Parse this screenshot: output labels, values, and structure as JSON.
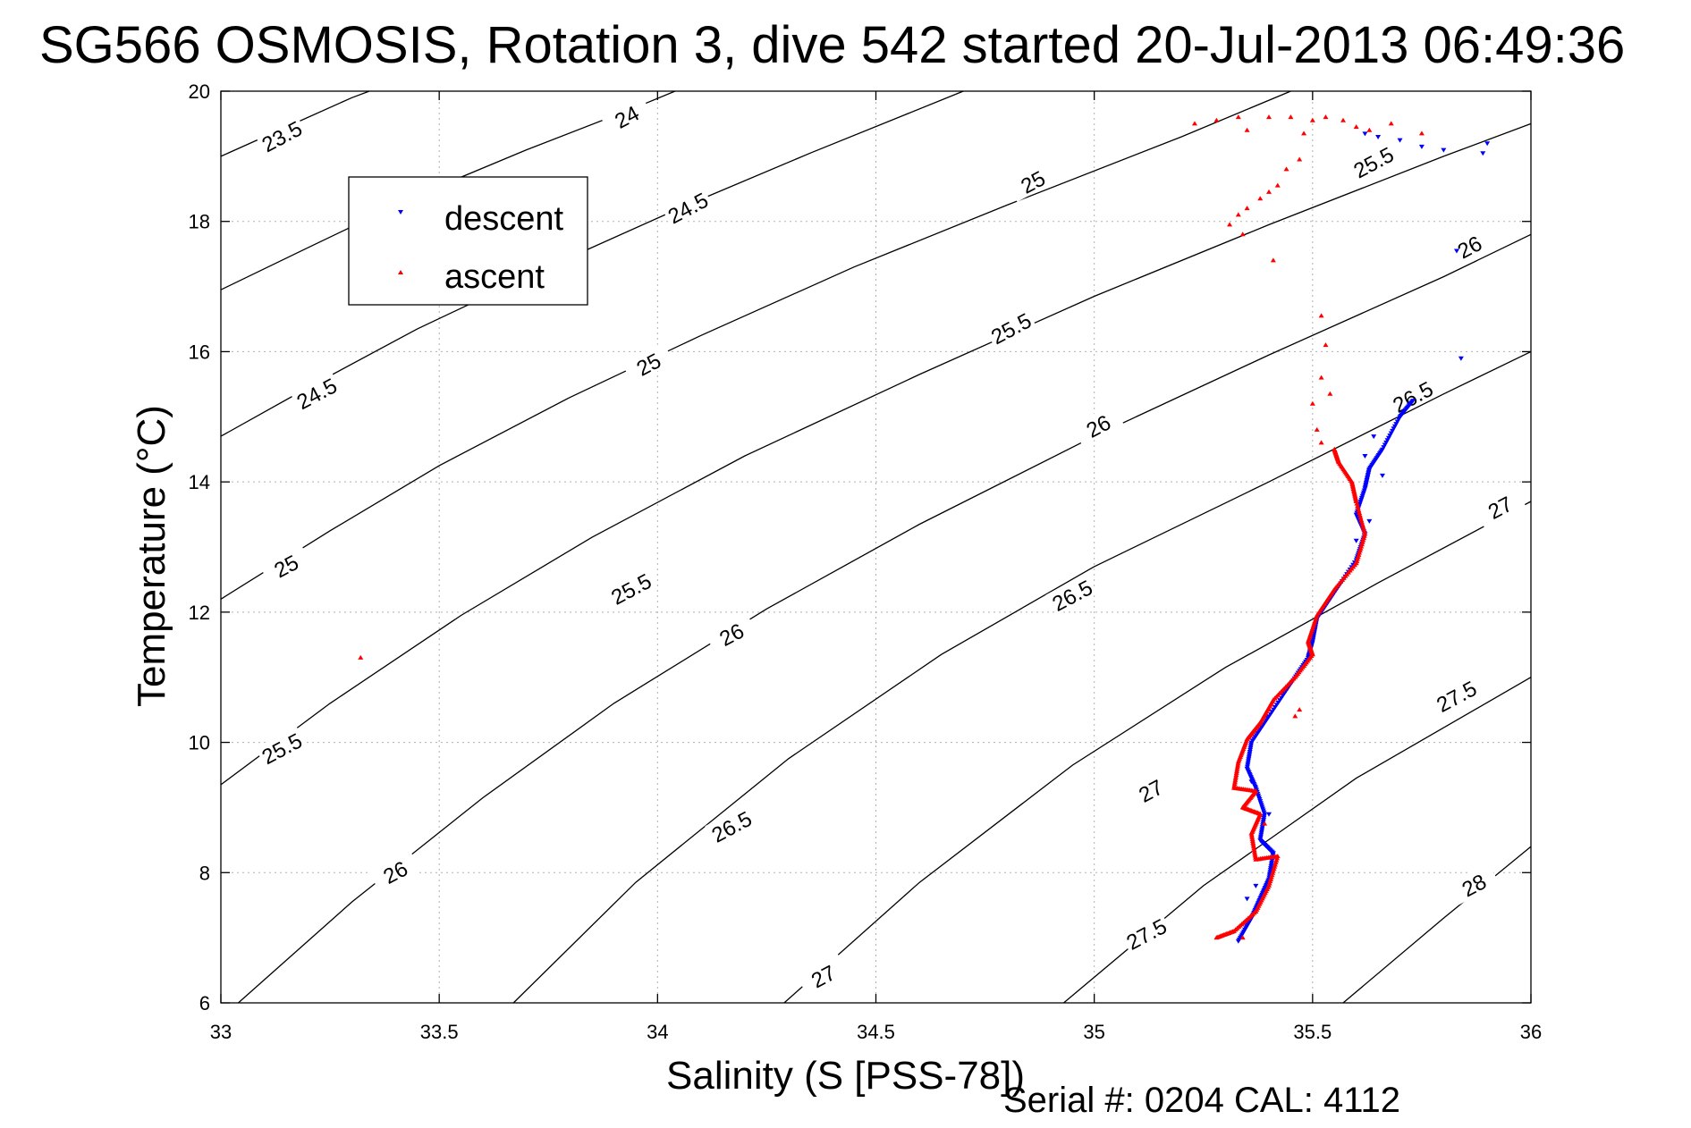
{
  "chart_data": {
    "type": "scatter",
    "title": "SG566 OSMOSIS, Rotation 3, dive 542 started 20-Jul-2013 06:49:36",
    "xlabel": "Salinity (S [PSS-78])",
    "ylabel": "Temperature (°C)",
    "footer": "Serial #: 0204  CAL: 4112",
    "xlim": [
      33,
      36
    ],
    "ylim": [
      6,
      20
    ],
    "x_ticks": [
      "33",
      "33.5",
      "34",
      "34.5",
      "35",
      "35.5",
      "36"
    ],
    "y_ticks": [
      "6",
      "8",
      "10",
      "12",
      "14",
      "16",
      "18",
      "20"
    ],
    "grid": true,
    "legend": {
      "position": "top-left",
      "entries": [
        {
          "label": "descent",
          "color": "#0000ff",
          "marker": "triangle-down"
        },
        {
          "label": "ascent",
          "color": "#ff0000",
          "marker": "triangle-up"
        }
      ]
    },
    "contours": [
      {
        "label": "23.5",
        "points": [
          [
            33.0,
            19.0
          ],
          [
            33.15,
            19.45
          ],
          [
            33.3,
            19.9
          ],
          [
            33.34,
            20.0
          ]
        ],
        "label_at": [
          33.14,
          19.3
        ]
      },
      {
        "label": "24",
        "points": [
          [
            33.0,
            16.95
          ],
          [
            33.2,
            17.6
          ],
          [
            33.45,
            18.4
          ],
          [
            33.7,
            19.1
          ],
          [
            33.95,
            19.75
          ],
          [
            34.04,
            20.0
          ]
        ],
        "label_at": [
          33.93,
          19.6
        ]
      },
      {
        "label": "24.5",
        "points": [
          [
            33.0,
            14.7
          ],
          [
            33.2,
            15.45
          ],
          [
            33.45,
            16.35
          ],
          [
            33.75,
            17.3
          ],
          [
            34.05,
            18.2
          ],
          [
            34.35,
            19.05
          ],
          [
            34.7,
            20.0
          ]
        ],
        "label_at": [
          34.07,
          18.2
        ]
      },
      {
        "label": "25",
        "points": [
          [
            33.0,
            12.2
          ],
          [
            33.25,
            13.25
          ],
          [
            33.5,
            14.25
          ],
          [
            33.8,
            15.3
          ],
          [
            34.1,
            16.25
          ],
          [
            34.45,
            17.3
          ],
          [
            34.8,
            18.25
          ],
          [
            35.2,
            19.3
          ],
          [
            35.45,
            20.0
          ]
        ],
        "label_at": [
          34.86,
          18.6
        ]
      },
      {
        "label": "25.5",
        "points": [
          [
            33.0,
            9.35
          ],
          [
            33.25,
            10.6
          ],
          [
            33.55,
            11.95
          ],
          [
            33.85,
            13.15
          ],
          [
            34.2,
            14.4
          ],
          [
            34.6,
            15.65
          ],
          [
            35.0,
            16.85
          ],
          [
            35.4,
            17.95
          ],
          [
            35.8,
            19.0
          ],
          [
            36.0,
            19.5
          ]
        ],
        "label_at": [
          35.64,
          18.9
        ]
      },
      {
        "label": "26",
        "points": [
          [
            33.04,
            6.0
          ],
          [
            33.3,
            7.55
          ],
          [
            33.6,
            9.15
          ],
          [
            33.9,
            10.6
          ],
          [
            34.25,
            12.05
          ],
          [
            34.6,
            13.35
          ],
          [
            35.0,
            14.7
          ],
          [
            35.4,
            15.95
          ],
          [
            35.8,
            17.15
          ],
          [
            36.0,
            17.8
          ]
        ],
        "label_at": [
          35.86,
          17.6
        ]
      },
      {
        "label": "26.5",
        "points": [
          [
            33.67,
            6.0
          ],
          [
            33.95,
            7.85
          ],
          [
            34.3,
            9.75
          ],
          [
            34.65,
            11.35
          ],
          [
            35.0,
            12.7
          ],
          [
            35.4,
            14.0
          ],
          [
            35.8,
            15.35
          ],
          [
            36.0,
            16.0
          ]
        ],
        "label_at": [
          35.73,
          15.3
        ]
      },
      {
        "label": "27",
        "points": [
          [
            34.29,
            6.0
          ],
          [
            34.6,
            7.85
          ],
          [
            34.95,
            9.65
          ],
          [
            35.3,
            11.15
          ],
          [
            35.65,
            12.45
          ],
          [
            36.0,
            13.7
          ]
        ],
        "label_at": [
          35.93,
          13.6
        ]
      },
      {
        "label": "27.5",
        "points": [
          [
            34.93,
            6.0
          ],
          [
            35.25,
            7.8
          ],
          [
            35.6,
            9.45
          ],
          [
            36.0,
            11.0
          ]
        ],
        "label_at": [
          35.83,
          10.7
        ]
      },
      {
        "label": "28",
        "points": [
          [
            35.57,
            6.0
          ],
          [
            35.8,
            7.3
          ],
          [
            36.0,
            8.4
          ]
        ],
        "label_at": [
          35.87,
          7.8
        ]
      }
    ],
    "extra_contour_labels": [
      {
        "label": "24.5",
        "at": [
          33.22,
          15.35
        ]
      },
      {
        "label": "25",
        "at": [
          33.15,
          12.7
        ]
      },
      {
        "label": "25.5",
        "at": [
          33.14,
          9.9
        ]
      },
      {
        "label": "26",
        "at": [
          33.4,
          8.0
        ]
      },
      {
        "label": "25",
        "at": [
          33.98,
          15.8
        ]
      },
      {
        "label": "25.5",
        "at": [
          33.94,
          12.35
        ]
      },
      {
        "label": "26",
        "at": [
          34.17,
          11.65
        ]
      },
      {
        "label": "26.5",
        "at": [
          34.17,
          8.7
        ]
      },
      {
        "label": "27",
        "at": [
          34.38,
          6.4
        ]
      },
      {
        "label": "25.5",
        "at": [
          34.81,
          16.35
        ]
      },
      {
        "label": "26",
        "at": [
          35.01,
          14.85
        ]
      },
      {
        "label": "26.5",
        "at": [
          34.95,
          12.25
        ]
      },
      {
        "label": "27",
        "at": [
          35.13,
          9.25
        ]
      },
      {
        "label": "27.5",
        "at": [
          35.12,
          7.05
        ]
      }
    ],
    "series": [
      {
        "name": "descent",
        "color": "#0000ff",
        "marker": "triangle-down",
        "path": [
          [
            35.33,
            6.95
          ],
          [
            35.36,
            7.3
          ],
          [
            35.38,
            7.6
          ],
          [
            35.4,
            7.9
          ],
          [
            35.41,
            8.3
          ],
          [
            35.38,
            8.5
          ],
          [
            35.39,
            8.9
          ],
          [
            35.37,
            9.3
          ],
          [
            35.35,
            9.6
          ],
          [
            35.36,
            10.0
          ],
          [
            35.4,
            10.4
          ],
          [
            35.45,
            10.9
          ],
          [
            35.49,
            11.3
          ],
          [
            35.5,
            11.55
          ],
          [
            35.51,
            11.9
          ],
          [
            35.55,
            12.3
          ],
          [
            35.6,
            12.8
          ],
          [
            35.62,
            13.2
          ],
          [
            35.6,
            13.5
          ],
          [
            35.62,
            13.9
          ],
          [
            35.63,
            14.2
          ],
          [
            35.66,
            14.5
          ],
          [
            35.7,
            15.0
          ],
          [
            35.73,
            15.25
          ]
        ],
        "scatter": [
          [
            35.62,
            19.35
          ],
          [
            35.65,
            19.3
          ],
          [
            35.7,
            19.25
          ],
          [
            35.75,
            19.15
          ],
          [
            35.8,
            19.1
          ],
          [
            35.9,
            19.2
          ],
          [
            35.89,
            19.05
          ],
          [
            35.83,
            17.55
          ],
          [
            35.84,
            15.9
          ],
          [
            35.64,
            14.7
          ],
          [
            35.62,
            14.4
          ],
          [
            35.66,
            14.1
          ],
          [
            35.63,
            13.4
          ],
          [
            35.6,
            13.1
          ],
          [
            35.36,
            9.4
          ],
          [
            35.4,
            8.9
          ],
          [
            35.37,
            7.8
          ],
          [
            35.35,
            7.6
          ]
        ]
      },
      {
        "name": "ascent",
        "color": "#ff0000",
        "marker": "triangle-up",
        "path": [
          [
            35.28,
            7.0
          ],
          [
            35.32,
            7.1
          ],
          [
            35.37,
            7.4
          ],
          [
            35.4,
            7.8
          ],
          [
            35.42,
            8.25
          ],
          [
            35.37,
            8.2
          ],
          [
            35.36,
            8.6
          ],
          [
            35.38,
            8.9
          ],
          [
            35.34,
            9.0
          ],
          [
            35.37,
            9.25
          ],
          [
            35.32,
            9.3
          ],
          [
            35.33,
            9.7
          ],
          [
            35.35,
            10.05
          ],
          [
            35.38,
            10.3
          ],
          [
            35.41,
            10.65
          ],
          [
            35.46,
            11.0
          ],
          [
            35.5,
            11.35
          ],
          [
            35.49,
            11.55
          ],
          [
            35.51,
            11.95
          ],
          [
            35.55,
            12.35
          ],
          [
            35.6,
            12.75
          ],
          [
            35.62,
            13.2
          ],
          [
            35.6,
            13.7
          ],
          [
            35.59,
            14.0
          ],
          [
            35.56,
            14.3
          ],
          [
            35.55,
            14.5
          ]
        ],
        "scatter": [
          [
            35.23,
            19.5
          ],
          [
            35.28,
            19.55
          ],
          [
            35.33,
            19.6
          ],
          [
            35.4,
            19.6
          ],
          [
            35.45,
            19.6
          ],
          [
            35.5,
            19.55
          ],
          [
            35.53,
            19.6
          ],
          [
            35.57,
            19.55
          ],
          [
            35.63,
            19.4
          ],
          [
            35.68,
            19.5
          ],
          [
            35.75,
            19.35
          ],
          [
            35.6,
            19.45
          ],
          [
            35.48,
            19.35
          ],
          [
            35.35,
            19.4
          ],
          [
            35.47,
            18.95
          ],
          [
            35.44,
            18.8
          ],
          [
            35.42,
            18.55
          ],
          [
            35.4,
            18.45
          ],
          [
            35.38,
            18.35
          ],
          [
            35.35,
            18.2
          ],
          [
            35.33,
            18.1
          ],
          [
            35.31,
            17.95
          ],
          [
            35.34,
            17.8
          ],
          [
            35.41,
            17.4
          ],
          [
            35.52,
            16.55
          ],
          [
            35.53,
            16.1
          ],
          [
            35.52,
            15.6
          ],
          [
            35.54,
            15.35
          ],
          [
            35.5,
            15.2
          ],
          [
            35.51,
            14.8
          ],
          [
            35.52,
            14.6
          ],
          [
            33.32,
            11.3
          ],
          [
            35.47,
            10.5
          ],
          [
            35.46,
            10.4
          ],
          [
            35.39,
            8.75
          ],
          [
            35.34,
            7.0
          ]
        ]
      }
    ]
  }
}
